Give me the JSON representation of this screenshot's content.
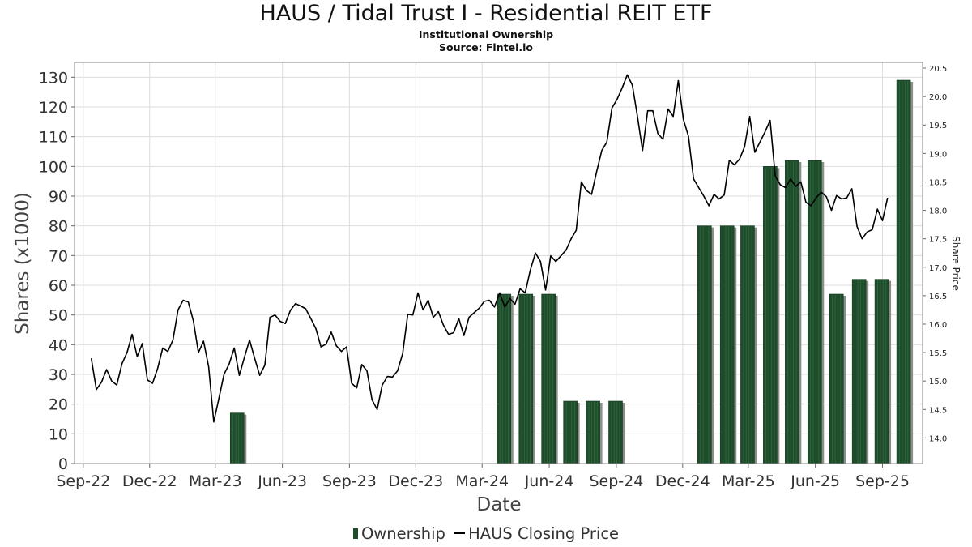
{
  "title": "HAUS / Tidal Trust I - Residential REIT ETF",
  "subtitle": "Institutional Ownership",
  "source": "Source: Fintel.io",
  "legend": {
    "bars": "Ownership",
    "line": "HAUS Closing Price"
  },
  "colors": {
    "bar": "#1f4d2c",
    "bar_shadow": "#8a8f8a",
    "line": "#000000",
    "grid": "#dddddd"
  },
  "chart_data": {
    "type": "bar+line",
    "xlabel": "Date",
    "ylabel": "Shares (x1000)",
    "ylabel_right": "Share Price",
    "ylim": [
      0,
      135
    ],
    "ylim_right": [
      13.55,
      20.6
    ],
    "yticks": [
      0,
      10,
      20,
      30,
      40,
      50,
      60,
      70,
      80,
      90,
      100,
      110,
      120,
      130
    ],
    "yticks_right": [
      "14.0",
      "14.5",
      "15.0",
      "15.5",
      "16.0",
      "16.5",
      "17.0",
      "17.5",
      "18.0",
      "18.5",
      "19.0",
      "19.5",
      "20.0",
      "20.5"
    ],
    "xlim": [
      "2022-08-20",
      "2025-10-26"
    ],
    "xticks": [
      {
        "label": "Sep-22",
        "date": "2022-09-01"
      },
      {
        "label": "Dec-22",
        "date": "2022-12-01"
      },
      {
        "label": "Mar-23",
        "date": "2023-03-01"
      },
      {
        "label": "Jun-23",
        "date": "2023-06-01"
      },
      {
        "label": "Sep-23",
        "date": "2023-09-01"
      },
      {
        "label": "Dec-23",
        "date": "2023-12-01"
      },
      {
        "label": "Mar-24",
        "date": "2024-03-01"
      },
      {
        "label": "Jun-24",
        "date": "2024-06-01"
      },
      {
        "label": "Sep-24",
        "date": "2024-09-01"
      },
      {
        "label": "Dec-24",
        "date": "2024-12-01"
      },
      {
        "label": "Mar-25",
        "date": "2025-03-01"
      },
      {
        "label": "Jun-25",
        "date": "2025-06-01"
      },
      {
        "label": "Sep-25",
        "date": "2025-09-01"
      }
    ],
    "ownership": [
      {
        "date": "2023-03-31",
        "value": 17
      },
      {
        "date": "2024-03-31",
        "value": 57
      },
      {
        "date": "2024-04-30",
        "value": 57
      },
      {
        "date": "2024-05-31",
        "value": 57
      },
      {
        "date": "2024-06-30",
        "value": 21
      },
      {
        "date": "2024-07-31",
        "value": 21
      },
      {
        "date": "2024-08-31",
        "value": 21
      },
      {
        "date": "2024-12-31",
        "value": 80
      },
      {
        "date": "2025-01-31",
        "value": 80
      },
      {
        "date": "2025-02-28",
        "value": 80
      },
      {
        "date": "2025-03-31",
        "value": 100
      },
      {
        "date": "2025-04-30",
        "value": 102
      },
      {
        "date": "2025-05-31",
        "value": 102
      },
      {
        "date": "2025-06-30",
        "value": 57
      },
      {
        "date": "2025-07-31",
        "value": 62
      },
      {
        "date": "2025-08-31",
        "value": 62
      },
      {
        "date": "2025-09-30",
        "value": 129
      }
    ],
    "price": [
      {
        "date": "2022-09-12",
        "value": 15.4
      },
      {
        "date": "2022-09-19",
        "value": 14.85
      },
      {
        "date": "2022-09-26",
        "value": 14.98
      },
      {
        "date": "2022-10-03",
        "value": 15.2
      },
      {
        "date": "2022-10-10",
        "value": 15.0
      },
      {
        "date": "2022-10-17",
        "value": 14.93
      },
      {
        "date": "2022-10-24",
        "value": 15.3
      },
      {
        "date": "2022-10-31",
        "value": 15.5
      },
      {
        "date": "2022-11-07",
        "value": 15.82
      },
      {
        "date": "2022-11-14",
        "value": 15.43
      },
      {
        "date": "2022-11-21",
        "value": 15.66
      },
      {
        "date": "2022-11-28",
        "value": 15.02
      },
      {
        "date": "2022-12-05",
        "value": 14.96
      },
      {
        "date": "2022-12-12",
        "value": 15.22
      },
      {
        "date": "2022-12-19",
        "value": 15.58
      },
      {
        "date": "2022-12-26",
        "value": 15.52
      },
      {
        "date": "2023-01-02",
        "value": 15.72
      },
      {
        "date": "2023-01-09",
        "value": 16.25
      },
      {
        "date": "2023-01-16",
        "value": 16.42
      },
      {
        "date": "2023-01-23",
        "value": 16.39
      },
      {
        "date": "2023-01-30",
        "value": 16.06
      },
      {
        "date": "2023-02-06",
        "value": 15.5
      },
      {
        "date": "2023-02-13",
        "value": 15.7
      },
      {
        "date": "2023-02-20",
        "value": 15.25
      },
      {
        "date": "2023-02-27",
        "value": 14.28
      },
      {
        "date": "2023-03-06",
        "value": 14.7
      },
      {
        "date": "2023-03-13",
        "value": 15.12
      },
      {
        "date": "2023-03-20",
        "value": 15.3
      },
      {
        "date": "2023-03-27",
        "value": 15.58
      },
      {
        "date": "2023-04-03",
        "value": 15.1
      },
      {
        "date": "2023-04-10",
        "value": 15.42
      },
      {
        "date": "2023-04-17",
        "value": 15.72
      },
      {
        "date": "2023-04-24",
        "value": 15.4
      },
      {
        "date": "2023-05-01",
        "value": 15.1
      },
      {
        "date": "2023-05-08",
        "value": 15.28
      },
      {
        "date": "2023-05-15",
        "value": 16.12
      },
      {
        "date": "2023-05-22",
        "value": 16.16
      },
      {
        "date": "2023-05-29",
        "value": 16.05
      },
      {
        "date": "2023-06-05",
        "value": 16.01
      },
      {
        "date": "2023-06-12",
        "value": 16.24
      },
      {
        "date": "2023-06-19",
        "value": 16.36
      },
      {
        "date": "2023-06-26",
        "value": 16.32
      },
      {
        "date": "2023-07-03",
        "value": 16.27
      },
      {
        "date": "2023-07-10",
        "value": 16.1
      },
      {
        "date": "2023-07-17",
        "value": 15.92
      },
      {
        "date": "2023-07-24",
        "value": 15.6
      },
      {
        "date": "2023-07-31",
        "value": 15.65
      },
      {
        "date": "2023-08-07",
        "value": 15.86
      },
      {
        "date": "2023-08-14",
        "value": 15.62
      },
      {
        "date": "2023-08-21",
        "value": 15.52
      },
      {
        "date": "2023-08-28",
        "value": 15.6
      },
      {
        "date": "2023-09-04",
        "value": 14.96
      },
      {
        "date": "2023-09-11",
        "value": 14.88
      },
      {
        "date": "2023-09-18",
        "value": 15.29
      },
      {
        "date": "2023-09-25",
        "value": 15.18
      },
      {
        "date": "2023-10-02",
        "value": 14.67
      },
      {
        "date": "2023-10-09",
        "value": 14.5
      },
      {
        "date": "2023-10-16",
        "value": 14.93
      },
      {
        "date": "2023-10-23",
        "value": 15.08
      },
      {
        "date": "2023-10-30",
        "value": 15.07
      },
      {
        "date": "2023-11-06",
        "value": 15.18
      },
      {
        "date": "2023-11-13",
        "value": 15.48
      },
      {
        "date": "2023-11-20",
        "value": 16.17
      },
      {
        "date": "2023-11-27",
        "value": 16.16
      },
      {
        "date": "2023-12-04",
        "value": 16.55
      },
      {
        "date": "2023-12-11",
        "value": 16.25
      },
      {
        "date": "2023-12-18",
        "value": 16.42
      },
      {
        "date": "2023-12-25",
        "value": 16.12
      },
      {
        "date": "2024-01-01",
        "value": 16.22
      },
      {
        "date": "2024-01-08",
        "value": 15.98
      },
      {
        "date": "2024-01-15",
        "value": 15.82
      },
      {
        "date": "2024-01-22",
        "value": 15.85
      },
      {
        "date": "2024-01-29",
        "value": 16.1
      },
      {
        "date": "2024-02-05",
        "value": 15.8
      },
      {
        "date": "2024-02-12",
        "value": 16.12
      },
      {
        "date": "2024-02-19",
        "value": 16.2
      },
      {
        "date": "2024-02-26",
        "value": 16.28
      },
      {
        "date": "2024-03-04",
        "value": 16.4
      },
      {
        "date": "2024-03-11",
        "value": 16.42
      },
      {
        "date": "2024-03-18",
        "value": 16.3
      },
      {
        "date": "2024-03-25",
        "value": 16.55
      },
      {
        "date": "2024-04-01",
        "value": 16.3
      },
      {
        "date": "2024-04-08",
        "value": 16.45
      },
      {
        "date": "2024-04-15",
        "value": 16.35
      },
      {
        "date": "2024-04-22",
        "value": 16.62
      },
      {
        "date": "2024-04-29",
        "value": 16.55
      },
      {
        "date": "2024-05-06",
        "value": 16.95
      },
      {
        "date": "2024-05-13",
        "value": 17.25
      },
      {
        "date": "2024-05-20",
        "value": 17.1
      },
      {
        "date": "2024-05-27",
        "value": 16.6
      },
      {
        "date": "2024-06-03",
        "value": 17.2
      },
      {
        "date": "2024-06-10",
        "value": 17.1
      },
      {
        "date": "2024-06-17",
        "value": 17.2
      },
      {
        "date": "2024-06-24",
        "value": 17.3
      },
      {
        "date": "2024-07-01",
        "value": 17.5
      },
      {
        "date": "2024-07-08",
        "value": 17.65
      },
      {
        "date": "2024-07-15",
        "value": 18.5
      },
      {
        "date": "2024-07-22",
        "value": 18.35
      },
      {
        "date": "2024-07-29",
        "value": 18.28
      },
      {
        "date": "2024-08-05",
        "value": 18.68
      },
      {
        "date": "2024-08-12",
        "value": 19.05
      },
      {
        "date": "2024-08-19",
        "value": 19.2
      },
      {
        "date": "2024-08-26",
        "value": 19.8
      },
      {
        "date": "2024-09-02",
        "value": 19.95
      },
      {
        "date": "2024-09-09",
        "value": 20.15
      },
      {
        "date": "2024-09-16",
        "value": 20.38
      },
      {
        "date": "2024-09-23",
        "value": 20.2
      },
      {
        "date": "2024-09-30",
        "value": 19.65
      },
      {
        "date": "2024-10-07",
        "value": 19.05
      },
      {
        "date": "2024-10-14",
        "value": 19.75
      },
      {
        "date": "2024-10-21",
        "value": 19.75
      },
      {
        "date": "2024-10-28",
        "value": 19.35
      },
      {
        "date": "2024-11-04",
        "value": 19.25
      },
      {
        "date": "2024-11-11",
        "value": 19.78
      },
      {
        "date": "2024-11-18",
        "value": 19.65
      },
      {
        "date": "2024-11-25",
        "value": 20.28
      },
      {
        "date": "2024-12-02",
        "value": 19.6
      },
      {
        "date": "2024-12-09",
        "value": 19.3
      },
      {
        "date": "2024-12-16",
        "value": 18.55
      },
      {
        "date": "2024-12-23",
        "value": 18.4
      },
      {
        "date": "2024-12-30",
        "value": 18.25
      },
      {
        "date": "2025-01-06",
        "value": 18.08
      },
      {
        "date": "2025-01-13",
        "value": 18.28
      },
      {
        "date": "2025-01-20",
        "value": 18.2
      },
      {
        "date": "2025-01-27",
        "value": 18.27
      },
      {
        "date": "2025-02-03",
        "value": 18.88
      },
      {
        "date": "2025-02-10",
        "value": 18.8
      },
      {
        "date": "2025-02-17",
        "value": 18.9
      },
      {
        "date": "2025-02-24",
        "value": 19.12
      },
      {
        "date": "2025-03-03",
        "value": 19.65
      },
      {
        "date": "2025-03-10",
        "value": 19.02
      },
      {
        "date": "2025-03-17",
        "value": 19.2
      },
      {
        "date": "2025-03-24",
        "value": 19.38
      },
      {
        "date": "2025-03-31",
        "value": 19.58
      },
      {
        "date": "2025-04-07",
        "value": 18.6
      },
      {
        "date": "2025-04-14",
        "value": 18.45
      },
      {
        "date": "2025-04-21",
        "value": 18.4
      },
      {
        "date": "2025-04-28",
        "value": 18.55
      },
      {
        "date": "2025-05-05",
        "value": 18.42
      },
      {
        "date": "2025-05-12",
        "value": 18.5
      },
      {
        "date": "2025-05-19",
        "value": 18.14
      },
      {
        "date": "2025-05-26",
        "value": 18.08
      },
      {
        "date": "2025-06-02",
        "value": 18.22
      },
      {
        "date": "2025-06-09",
        "value": 18.32
      },
      {
        "date": "2025-06-16",
        "value": 18.24
      },
      {
        "date": "2025-06-23",
        "value": 18.0
      },
      {
        "date": "2025-06-30",
        "value": 18.26
      },
      {
        "date": "2025-07-07",
        "value": 18.2
      },
      {
        "date": "2025-07-14",
        "value": 18.22
      },
      {
        "date": "2025-07-21",
        "value": 18.38
      },
      {
        "date": "2025-07-28",
        "value": 17.72
      },
      {
        "date": "2025-08-04",
        "value": 17.5
      },
      {
        "date": "2025-08-11",
        "value": 17.62
      },
      {
        "date": "2025-08-18",
        "value": 17.66
      },
      {
        "date": "2025-08-25",
        "value": 18.02
      },
      {
        "date": "2025-09-01",
        "value": 17.82
      },
      {
        "date": "2025-09-08",
        "value": 18.22
      }
    ]
  }
}
